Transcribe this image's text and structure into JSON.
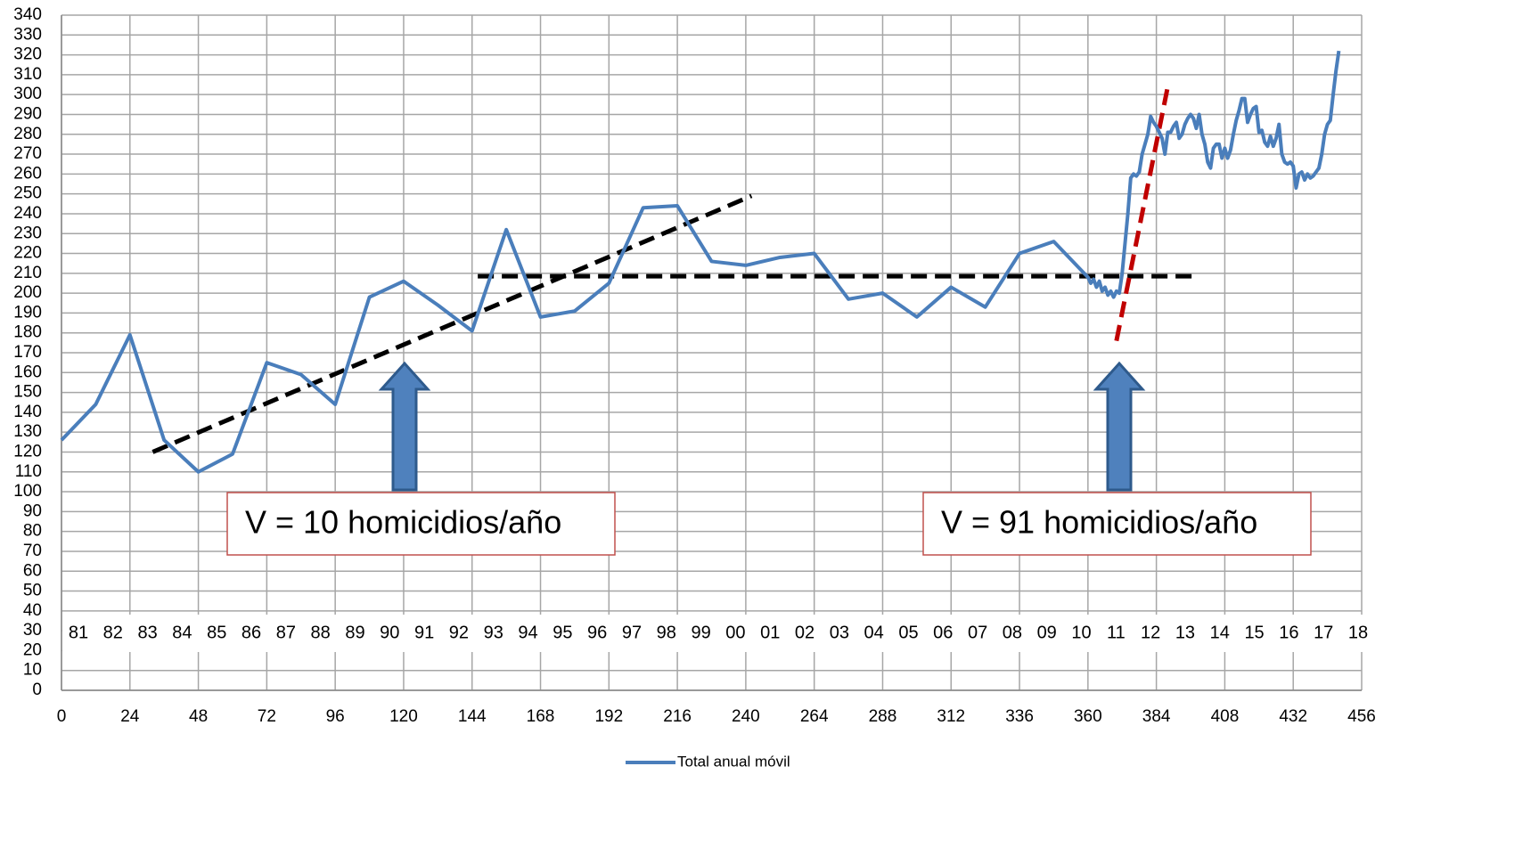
{
  "chart_data": {
    "type": "line",
    "x": [
      0,
      12,
      24,
      36,
      48,
      60,
      72,
      84,
      96,
      108,
      120,
      132,
      144,
      156,
      168,
      180,
      192,
      204,
      216,
      228,
      240,
      252,
      264,
      276,
      288,
      300,
      312,
      324,
      336,
      348,
      360,
      361,
      362,
      363,
      364,
      365,
      366,
      367,
      368,
      369,
      370,
      371,
      372,
      373,
      374,
      375,
      376,
      377,
      378,
      379,
      380,
      381,
      382,
      383,
      384,
      385,
      386,
      387,
      388,
      389,
      390,
      391,
      392,
      393,
      394,
      395,
      396,
      397,
      398,
      399,
      400,
      401,
      402,
      403,
      404,
      405,
      406,
      407,
      408,
      409,
      410,
      411,
      412,
      413,
      414,
      415,
      416,
      417,
      418,
      419,
      420,
      421,
      422,
      423,
      424,
      425,
      426,
      427,
      428,
      429,
      430,
      431,
      432,
      433,
      434,
      435,
      436,
      437,
      438,
      439,
      440,
      441,
      442,
      443,
      444,
      445,
      446,
      447,
      448
    ],
    "series": [
      {
        "name": "Total anual móvil",
        "color": "#4a7ebb",
        "values": [
          126,
          144,
          179,
          126,
          110,
          119,
          165,
          159,
          144,
          198,
          206,
          194,
          181,
          232,
          188,
          191,
          205,
          243,
          244,
          216,
          214,
          218,
          220,
          197,
          200,
          188,
          203,
          193,
          220,
          226,
          208,
          205,
          207,
          203,
          206,
          201,
          203,
          199,
          201,
          198,
          201,
          200,
          210,
          225,
          240,
          258,
          260,
          259,
          261,
          270,
          275,
          280,
          289,
          286,
          284,
          281,
          278,
          270,
          281,
          281,
          284,
          286,
          278,
          280,
          285,
          288,
          290,
          288,
          283,
          290,
          280,
          275,
          266,
          263,
          273,
          275,
          275,
          268,
          273,
          268,
          272,
          280,
          287,
          292,
          298,
          298,
          286,
          290,
          293,
          294,
          281,
          282,
          276,
          274,
          279,
          274,
          278,
          285,
          270,
          266,
          265,
          266,
          264,
          253,
          260,
          261,
          257,
          260,
          258,
          259,
          261,
          263,
          270,
          280,
          285,
          287,
          300,
          312,
          322
        ]
      }
    ],
    "xlim": [
      0,
      456
    ],
    "xticks": [
      0,
      24,
      48,
      72,
      96,
      120,
      144,
      168,
      192,
      216,
      240,
      264,
      288,
      312,
      336,
      360,
      384,
      408,
      432,
      456
    ],
    "ylim": [
      0,
      340
    ],
    "yticks": [
      0,
      10,
      20,
      30,
      40,
      50,
      60,
      70,
      80,
      90,
      100,
      110,
      120,
      130,
      140,
      150,
      160,
      170,
      180,
      190,
      200,
      210,
      220,
      230,
      240,
      250,
      260,
      270,
      280,
      290,
      300,
      310,
      320,
      330,
      340
    ],
    "grid": true,
    "year_labels": [
      "81",
      "82",
      "83",
      "84",
      "85",
      "86",
      "87",
      "88",
      "89",
      "90",
      "91",
      "92",
      "93",
      "94",
      "95",
      "96",
      "97",
      "98",
      "99",
      "00",
      "01",
      "02",
      "03",
      "04",
      "05",
      "06",
      "07",
      "08",
      "09",
      "10",
      "11",
      "12",
      "13",
      "14",
      "15",
      "16",
      "17",
      "18"
    ],
    "trend_lines": [
      {
        "x": [
          32,
          242
        ],
        "y": [
          120,
          249
        ],
        "color": "#000000"
      },
      {
        "x": [
          146,
          398
        ],
        "y": [
          208.5,
          208.5
        ],
        "color": "#000000"
      },
      {
        "x": [
          370,
          388
        ],
        "y": [
          176,
          304
        ],
        "color": "#c00000"
      }
    ],
    "annotations": [
      "V = 10 homicidios/año",
      "V = 91 homicidios/año"
    ],
    "legend": "bottom"
  }
}
